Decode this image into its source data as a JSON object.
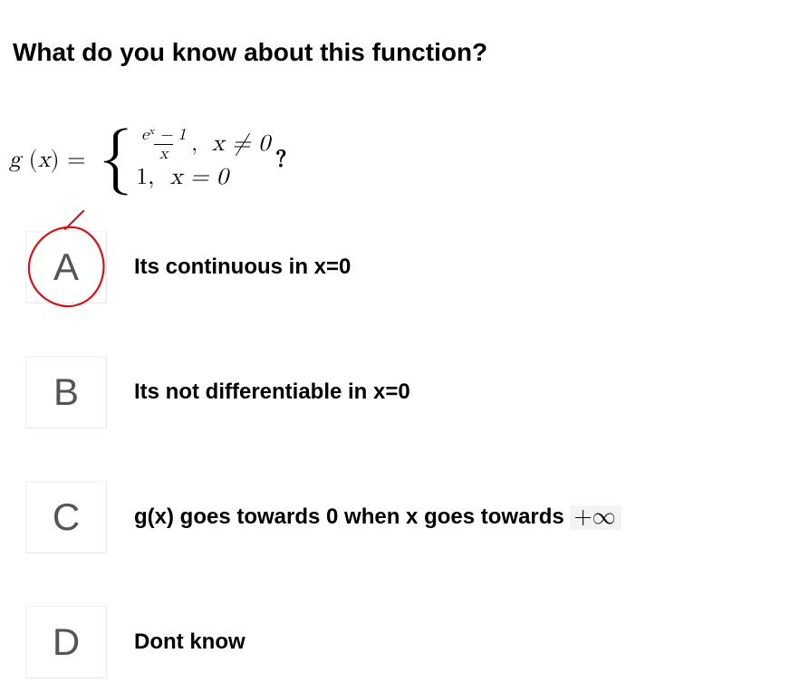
{
  "question": "What do you know about this function?",
  "equation": {
    "func_name": "g",
    "var": "x",
    "case1_numerator_html": "e<span class='sup'>x</span> − 1",
    "case1_denominator": "x",
    "case1_condition": "x ≠ 0",
    "case2_value": "1",
    "case2_condition": "x = 0",
    "trailing": "?"
  },
  "options": [
    {
      "letter": "A",
      "text": "Its continuous in x=0",
      "circled": true,
      "has_infty": false
    },
    {
      "letter": "B",
      "text": "Its not differentiable in x=0",
      "circled": false,
      "has_infty": false
    },
    {
      "letter": "C",
      "text_prefix": "g(x) goes towards 0 when x goes towards ",
      "infty": "+∞",
      "circled": false,
      "has_infty": true
    },
    {
      "letter": "D",
      "text": "Dont know",
      "circled": false,
      "has_infty": false
    }
  ],
  "style": {
    "circle_color": "#d4141b",
    "circle_stroke": 2.2,
    "option_box_border": "#e8e8e8",
    "option_letter_color": "#555555",
    "page_bg": "#ffffff",
    "title_fontsize": 28,
    "option_fontsize": 24,
    "option_letter_fontsize": 42
  }
}
